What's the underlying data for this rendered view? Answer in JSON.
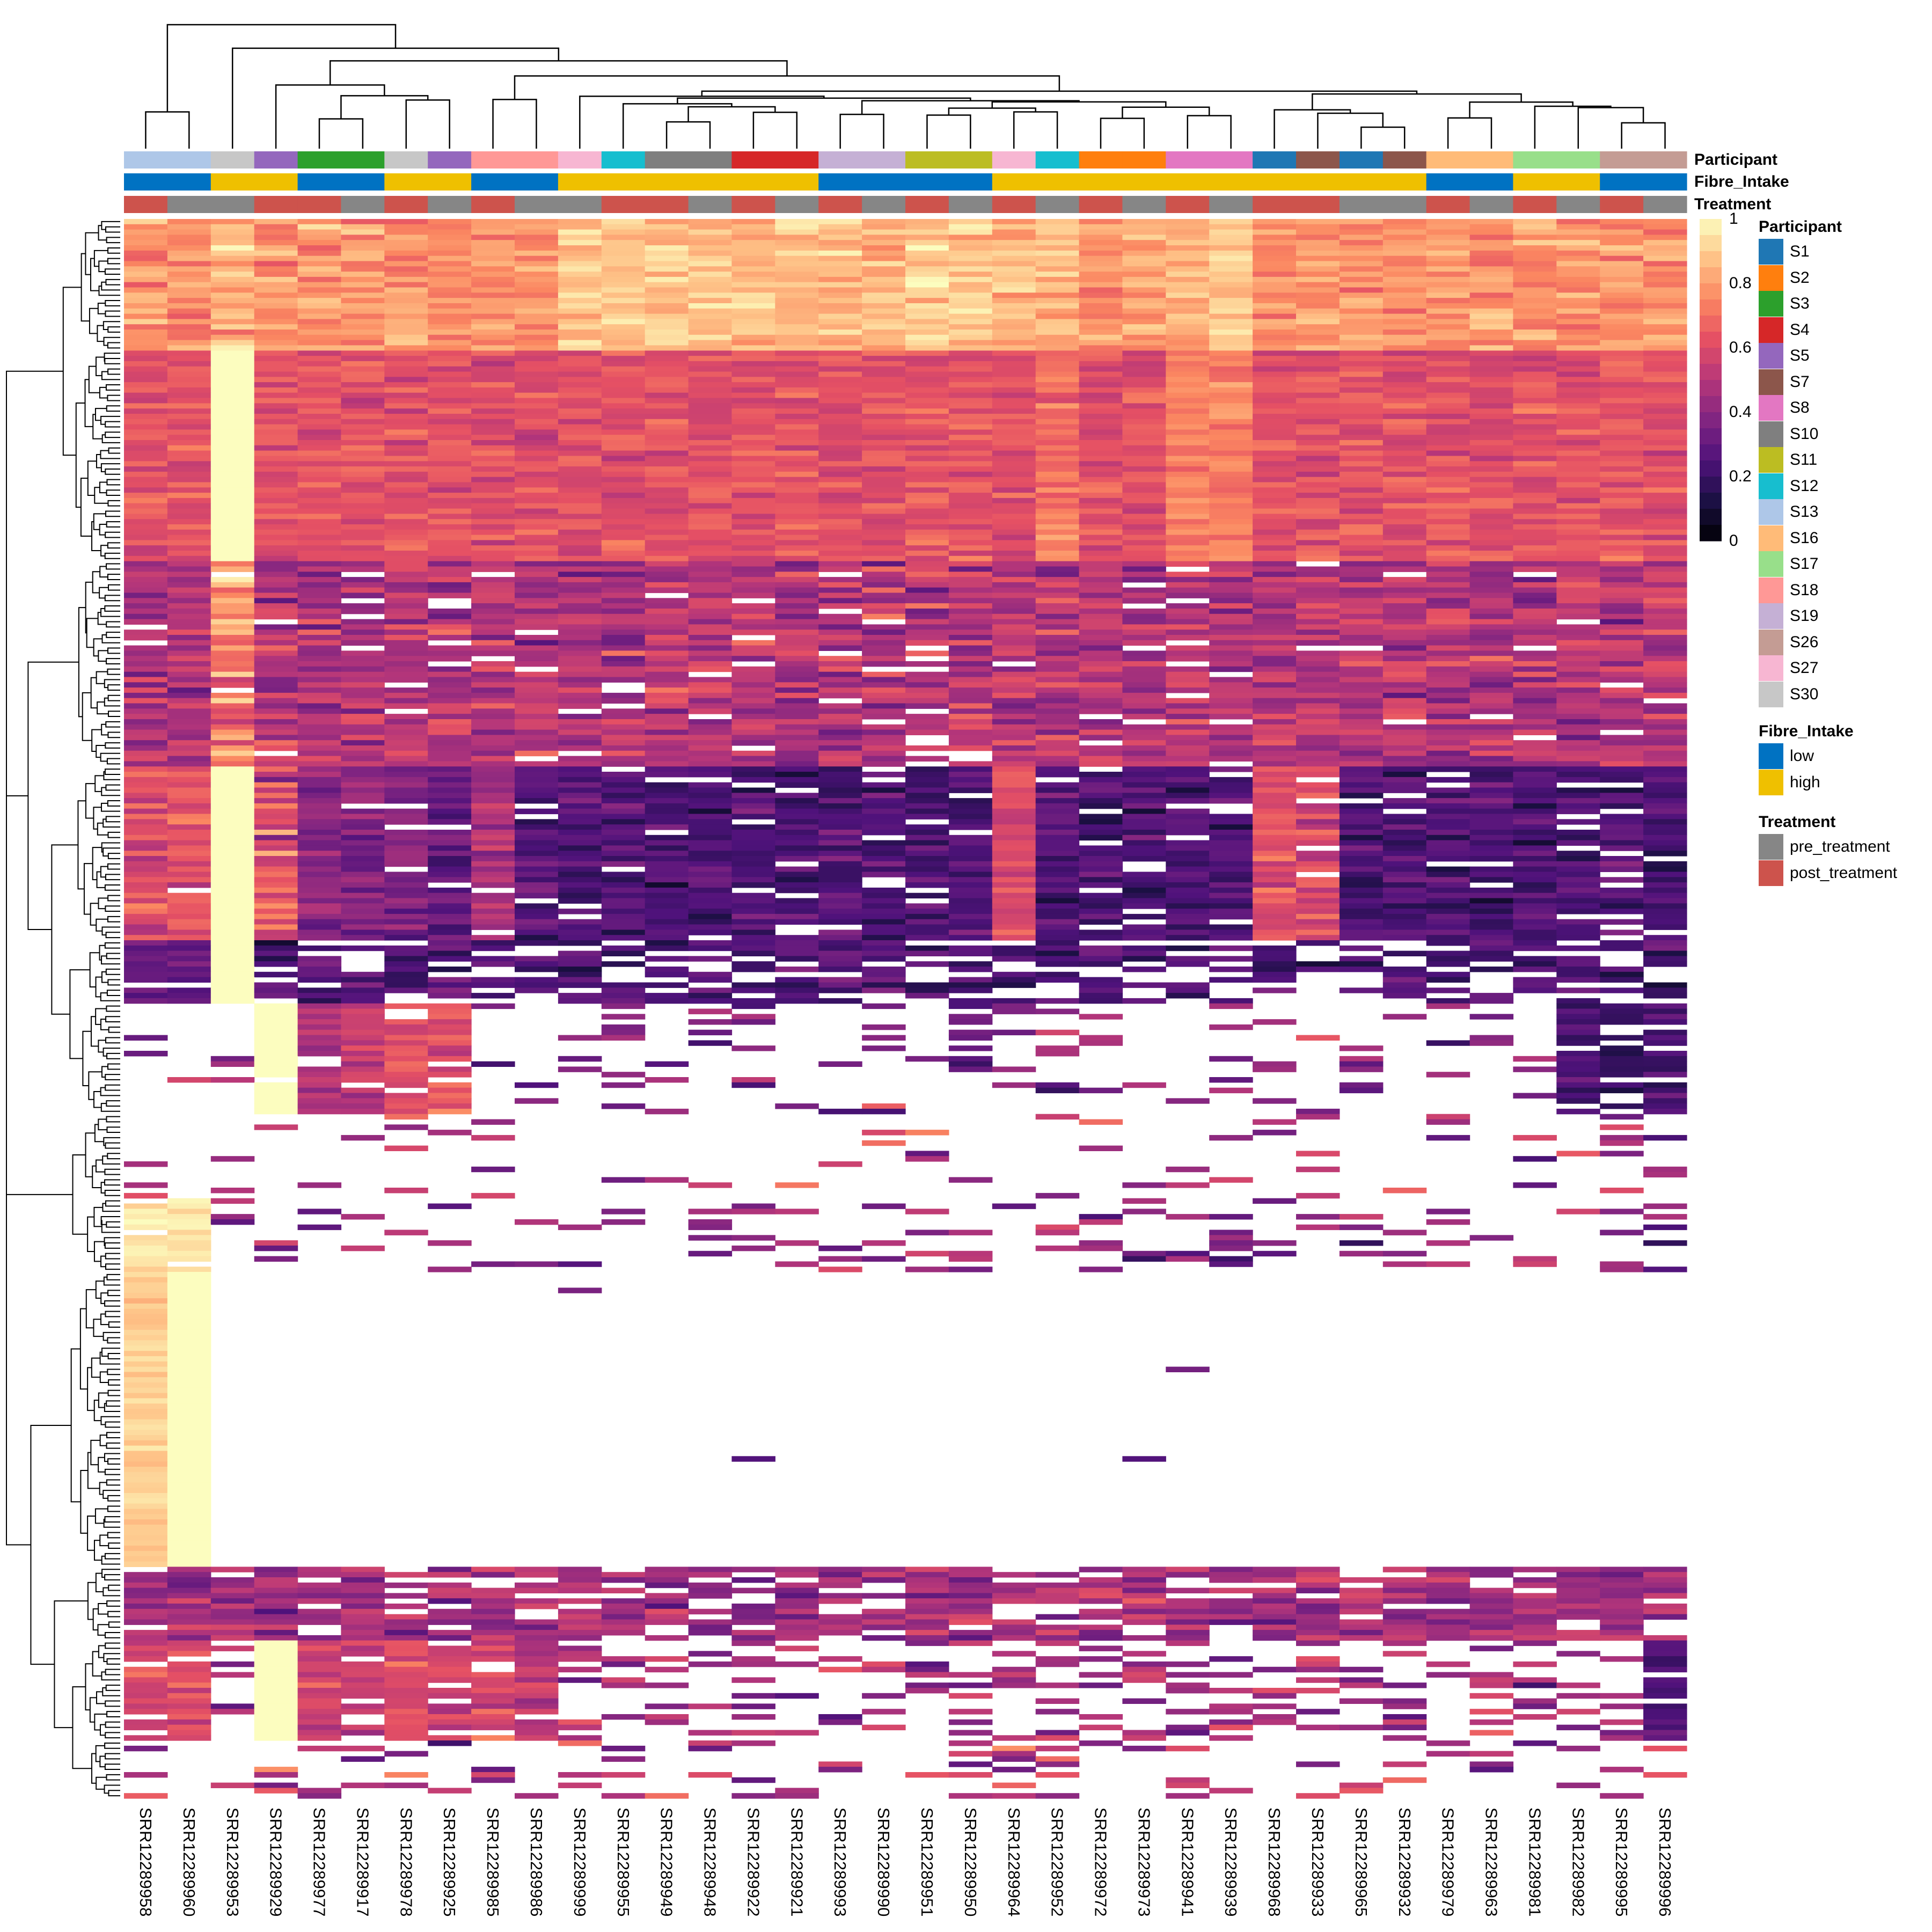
{
  "chart_data": {
    "type": "heatmap",
    "title": "",
    "columns": [
      "SRR12289958",
      "SRR12289960",
      "SRR12289953",
      "SRR12289929",
      "SRR12289977",
      "SRR12289917",
      "SRR12289978",
      "SRR12289925",
      "SRR12289985",
      "SRR12289986",
      "SRR12289999",
      "SRR12289955",
      "SRR12289949",
      "SRR12289948",
      "SRR12289922",
      "SRR12289921",
      "SRR12289993",
      "SRR12289990",
      "SRR12289951",
      "SRR12289950",
      "SRR12289964",
      "SRR12289952",
      "SRR12289972",
      "SRR12289973",
      "SRR12289941",
      "SRR12289939",
      "SRR12289968",
      "SRR12289933",
      "SRR12289965",
      "SRR12289932",
      "SRR12289979",
      "SRR12289963",
      "SRR12289981",
      "SRR12289982",
      "SRR12289995",
      "SRR12289996"
    ],
    "annotations": {
      "Participant": [
        "S13",
        "S13",
        "S30",
        "S5",
        "S3",
        "S3",
        "S30",
        "S5",
        "S18",
        "S18",
        "S27",
        "S12",
        "S10",
        "S10",
        "S4",
        "S4",
        "S19",
        "S19",
        "S11",
        "S11",
        "S27",
        "S12",
        "S2",
        "S2",
        "S8",
        "S8",
        "S1",
        "S7",
        "S1",
        "S7",
        "S16",
        "S16",
        "S17",
        "S17",
        "S26",
        "S26"
      ],
      "Fibre_Intake": [
        "low",
        "low",
        "high",
        "high",
        "low",
        "low",
        "high",
        "high",
        "low",
        "low",
        "high",
        "high",
        "high",
        "high",
        "high",
        "high",
        "low",
        "low",
        "low",
        "low",
        "high",
        "high",
        "high",
        "high",
        "high",
        "high",
        "high",
        "high",
        "high",
        "high",
        "low",
        "low",
        "high",
        "high",
        "low",
        "low"
      ],
      "Treatment": [
        "post_treatment",
        "pre_treatment",
        "pre_treatment",
        "post_treatment",
        "post_treatment",
        "pre_treatment",
        "post_treatment",
        "pre_treatment",
        "post_treatment",
        "pre_treatment",
        "pre_treatment",
        "post_treatment",
        "post_treatment",
        "pre_treatment",
        "post_treatment",
        "pre_treatment",
        "post_treatment",
        "pre_treatment",
        "post_treatment",
        "pre_treatment",
        "post_treatment",
        "pre_treatment",
        "post_treatment",
        "pre_treatment",
        "post_treatment",
        "pre_treatment",
        "post_treatment",
        "post_treatment",
        "pre_treatment",
        "pre_treatment",
        "post_treatment",
        "pre_treatment",
        "post_treatment",
        "pre_treatment",
        "post_treatment",
        "pre_treatment"
      ]
    },
    "value_range": [
      0,
      1
    ],
    "na_color": "#ffffff",
    "row_bands_approx": [
      {
        "rows": 25,
        "mean": 0.78,
        "sd": 0.12,
        "na": 0,
        "overrides": {
          "2": [
            0.85,
            0,
            0.15
          ],
          "10": [
            0.88,
            0,
            0.1
          ],
          "11": [
            0.88,
            0,
            0.1
          ],
          "12": [
            0.88,
            0,
            0.1
          ],
          "13": [
            0.88,
            0,
            0.1
          ],
          "14": [
            0.88,
            0,
            0.1
          ],
          "15": [
            0.88,
            0,
            0.1
          ],
          "16": [
            0.86,
            0,
            0.1
          ],
          "17": [
            0.86,
            0,
            0.1
          ],
          "18": [
            0.9,
            0,
            0.1
          ],
          "19": [
            0.88,
            0,
            0.1
          ],
          "20": [
            0.86,
            0,
            0.1
          ],
          "21": [
            0.86,
            0,
            0.1
          ],
          "24": [
            0.86,
            0,
            0.1
          ],
          "25": [
            0.9,
            0,
            0.1
          ]
        }
      },
      {
        "rows": 40,
        "mean": 0.62,
        "sd": 0.1,
        "na": 0,
        "overrides": {
          "2": [
            1,
            0,
            0
          ],
          "24": [
            0.72,
            0,
            0.08
          ],
          "25": [
            0.74,
            0,
            0.08
          ],
          "21": [
            0.7,
            0,
            0.1
          ]
        }
      },
      {
        "rows": 39,
        "mean": 0.5,
        "sd": 0.17,
        "na": 0.05,
        "overrides": {
          "2": [
            0.75,
            0.02,
            0.25
          ]
        }
      },
      {
        "rows": 33,
        "mean": 0.25,
        "sd": 0.12,
        "na": 0.08,
        "overrides": {
          "0": [
            0.62,
            0.02,
            0.12
          ],
          "1": [
            0.62,
            0.02,
            0.12
          ],
          "2": [
            1,
            0,
            0
          ],
          "3": [
            0.6,
            0.08,
            0.25
          ],
          "4": [
            0.38,
            0.02,
            0.12
          ],
          "5": [
            0.38,
            0.02,
            0.12
          ],
          "6": [
            0.38,
            0.05,
            0.15
          ],
          "7": [
            0.3,
            0.05,
            0.12
          ],
          "8": [
            0.45,
            0.05,
            0.12
          ],
          "20": [
            0.6,
            0.02,
            0.1
          ],
          "26": [
            0.6,
            0.05,
            0.12
          ],
          "27": [
            0.6,
            0.05,
            0.15
          ]
        }
      },
      {
        "rows": 12,
        "mean": 0.25,
        "sd": 0.12,
        "na": 0.35,
        "overrides": {
          "2": [
            1,
            0,
            0
          ],
          "0": [
            0.3,
            0.1,
            0.1
          ],
          "1": [
            0.3,
            0.1,
            0.1
          ]
        }
      },
      {
        "rows": 21,
        "mean": 0.4,
        "sd": 0.2,
        "na": 0.85,
        "overrides": {
          "3": [
            1,
            0.1,
            0
          ],
          "4": [
            0.5,
            0.15,
            0.12
          ],
          "5": [
            0.5,
            0.15,
            0.12
          ],
          "6": [
            0.6,
            0.15,
            0.12
          ],
          "7": [
            0.6,
            0.15,
            0.12
          ],
          "33": [
            0.25,
            0.3,
            0.1
          ],
          "34": [
            0.2,
            0.3,
            0.1
          ],
          "35": [
            0.25,
            0.3,
            0.1
          ],
          "11": [
            0.4,
            0.5,
            0.1
          ],
          "19": [
            0.3,
            0.5,
            0.1
          ]
        }
      },
      {
        "rows": 16,
        "mean": 0.5,
        "sd": 0.25,
        "na": 0.9,
        "overrides": {}
      },
      {
        "rows": 14,
        "mean": 0.4,
        "sd": 0.2,
        "na": 0.8,
        "overrides": {
          "0": [
            0.95,
            0.1,
            0.05
          ],
          "1": [
            0.95,
            0.1,
            0.05
          ]
        }
      },
      {
        "rows": 56,
        "mean": 0.3,
        "sd": 0.1,
        "na": 0.997,
        "overrides": {
          "0": [
            0.9,
            0,
            0.06
          ],
          "1": [
            1,
            0,
            0
          ]
        }
      },
      {
        "rows": 14,
        "mean": 0.45,
        "sd": 0.15,
        "na": 0.2,
        "overrides": {}
      },
      {
        "rows": 19,
        "mean": 0.45,
        "sd": 0.18,
        "na": 0.65,
        "overrides": {
          "3": [
            1,
            0,
            0
          ],
          "0": [
            0.6,
            0.1,
            0.1
          ],
          "1": [
            0.6,
            0.1,
            0.1
          ],
          "4": [
            0.55,
            0.2,
            0.12
          ],
          "5": [
            0.55,
            0.2,
            0.12
          ],
          "6": [
            0.6,
            0.2,
            0.12
          ],
          "7": [
            0.6,
            0.2,
            0.12
          ],
          "8": [
            0.6,
            0.2,
            0.12
          ],
          "9": [
            0.5,
            0.2,
            0.12
          ],
          "35": [
            0.25,
            0.2,
            0.1
          ]
        }
      },
      {
        "rows": 11,
        "mean": 0.5,
        "sd": 0.25,
        "na": 0.8,
        "overrides": {}
      }
    ]
  },
  "annotation_labels": [
    "Participant",
    "Fibre_Intake",
    "Treatment"
  ],
  "colorbar": {
    "ticks": [
      "1",
      "0.8",
      "0.6",
      "0.4",
      "0.2",
      "0"
    ],
    "tick_values": [
      1,
      0.8,
      0.6,
      0.4,
      0.2,
      0
    ]
  },
  "colormap": [
    "#000004",
    "#1c1044",
    "#4f127b",
    "#812581",
    "#b5367a",
    "#e55064",
    "#fb8761",
    "#fec287",
    "#fcfdbf"
  ],
  "legend": {
    "participant": {
      "title": "Participant",
      "items": [
        {
          "label": "S1",
          "color": "#1f77b4"
        },
        {
          "label": "S2",
          "color": "#ff7f0e"
        },
        {
          "label": "S3",
          "color": "#2ca02c"
        },
        {
          "label": "S4",
          "color": "#d62728"
        },
        {
          "label": "S5",
          "color": "#9467bd"
        },
        {
          "label": "S7",
          "color": "#8c564b"
        },
        {
          "label": "S8",
          "color": "#e377c2"
        },
        {
          "label": "S10",
          "color": "#7f7f7f"
        },
        {
          "label": "S11",
          "color": "#bcbd22"
        },
        {
          "label": "S12",
          "color": "#17becf"
        },
        {
          "label": "S13",
          "color": "#aec7e8"
        },
        {
          "label": "S16",
          "color": "#ffbb78"
        },
        {
          "label": "S17",
          "color": "#98df8a"
        },
        {
          "label": "S18",
          "color": "#ff9896"
        },
        {
          "label": "S19",
          "color": "#c5b0d5"
        },
        {
          "label": "S26",
          "color": "#c49c94"
        },
        {
          "label": "S27",
          "color": "#f7b6d2"
        },
        {
          "label": "S30",
          "color": "#c7c7c7"
        }
      ]
    },
    "fibre": {
      "title": "Fibre_Intake",
      "items": [
        {
          "label": "low",
          "color": "#0072c2"
        },
        {
          "label": "high",
          "color": "#efc000"
        }
      ]
    },
    "treatment": {
      "title": "Treatment",
      "items": [
        {
          "label": "pre_treatment",
          "color": "#868686"
        },
        {
          "label": "post_treatment",
          "color": "#cd534c"
        }
      ]
    }
  }
}
